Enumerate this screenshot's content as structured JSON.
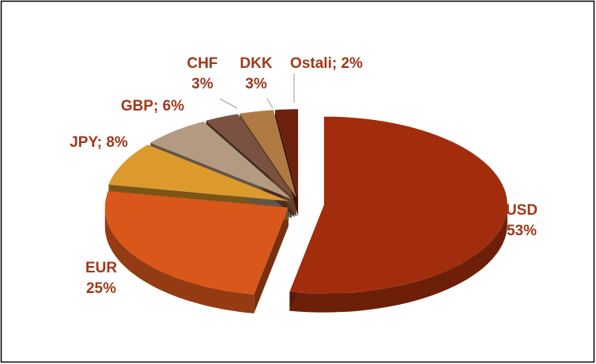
{
  "chart_data": {
    "type": "pie",
    "categories": [
      "USD",
      "EUR",
      "JPY",
      "GBP",
      "CHF",
      "DKK",
      "Ostali"
    ],
    "values": [
      53,
      25,
      8,
      6,
      3,
      3,
      2
    ],
    "value_labels": [
      "53%",
      "25%",
      "; 8%",
      "; 6%",
      "3%",
      "3%",
      "; 2%"
    ],
    "colors": [
      "#a12d0c",
      "#d9571a",
      "#dd9a2c",
      "#b49a80",
      "#7b5242",
      "#b07a44",
      "#6e210f"
    ],
    "label_color": "#a0381a"
  }
}
